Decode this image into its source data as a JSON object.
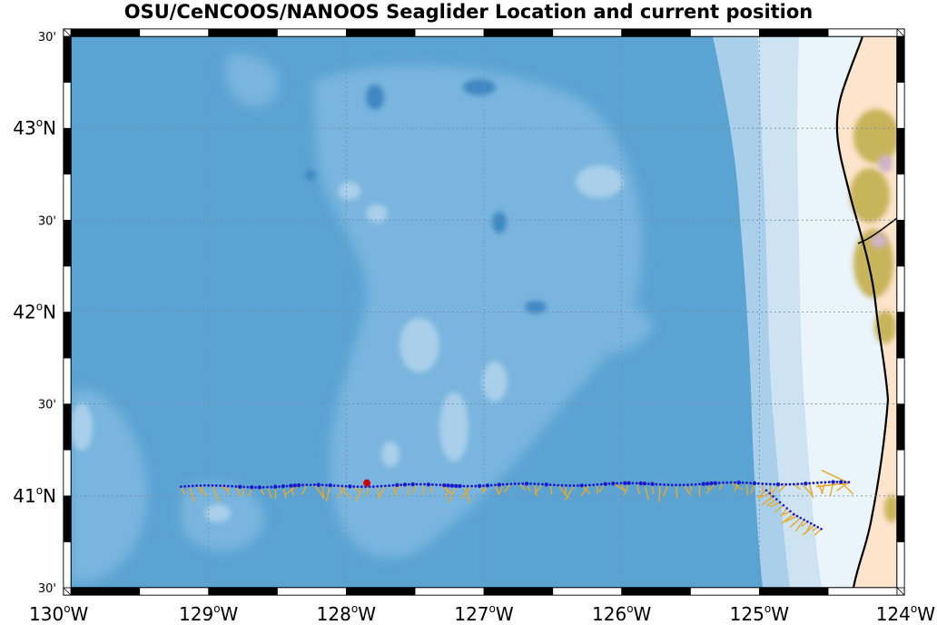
{
  "title": "OSU/CeNCOOS/NANOOS Seaglider Location and current position",
  "colors": {
    "ocean_deep": "#5ba3d3",
    "ocean_mid": "#79b5de",
    "ocean_light": "#a9cfea",
    "ocean_shelf": "#cde3f2",
    "ocean_coast": "#eaf4fb",
    "land": "#fde4cc",
    "land_hills": "#c8b45a",
    "land_peaks": "#a89a3e",
    "coastline": "#000000",
    "track_dots": "#1a1acc",
    "current_arrows": "#e8a92a",
    "glider_marker": "#cc0000"
  },
  "map": {
    "lon_range": [
      -130,
      -124
    ],
    "lat_range": [
      40.5,
      43.5
    ],
    "grid": true
  },
  "x_ticks": [
    {
      "lon": -130,
      "label": "130",
      "hem": "W"
    },
    {
      "lon": -129,
      "label": "129",
      "hem": "W"
    },
    {
      "lon": -128,
      "label": "128",
      "hem": "W"
    },
    {
      "lon": -127,
      "label": "127",
      "hem": "W"
    },
    {
      "lon": -126,
      "label": "126",
      "hem": "W"
    },
    {
      "lon": -125,
      "label": "125",
      "hem": "W"
    },
    {
      "lon": -124,
      "label": "124",
      "hem": "W"
    }
  ],
  "y_ticks": [
    {
      "lat": 43.5,
      "label": "30'",
      "major": false
    },
    {
      "lat": 43.0,
      "label": "43",
      "hem": "N",
      "major": true
    },
    {
      "lat": 42.5,
      "label": "30'",
      "major": false
    },
    {
      "lat": 42.0,
      "label": "42",
      "hem": "N",
      "major": true
    },
    {
      "lat": 41.5,
      "label": "30'",
      "major": false
    },
    {
      "lat": 41.0,
      "label": "41",
      "hem": "N",
      "major": true
    },
    {
      "lat": 40.5,
      "label": "30'",
      "major": false
    }
  ],
  "glider_track": {
    "start": {
      "lon": -129.2,
      "lat": 41.05
    },
    "end": {
      "lon": -124.35,
      "lat": 41.07
    },
    "current_position": {
      "lon": -127.85,
      "lat": 41.07
    },
    "hook": [
      {
        "lon": -124.95,
        "lat": 41.03
      },
      {
        "lon": -124.75,
        "lat": 40.9
      },
      {
        "lon": -124.55,
        "lat": 40.82
      }
    ]
  }
}
